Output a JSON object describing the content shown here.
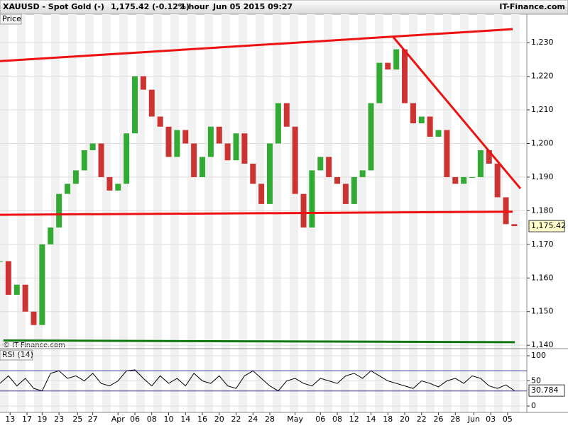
{
  "header": {
    "symbol": "XAUUSD - Spot Gold (-)",
    "quote": "1,175.42 (-0.12%)",
    "interval": "1 hour",
    "timestamp": "Jun 05 2015 09:27",
    "brand": "IT-Finance.com"
  },
  "chart_data": [
    {
      "type": "candlestick",
      "title": "Price",
      "watermark": "© IT-Finance.com",
      "x": [
        0,
        0.5,
        1,
        1.5,
        2,
        2.5,
        3,
        3.5,
        4,
        4.5,
        5,
        5.5,
        6,
        6.5,
        7,
        7.5,
        8,
        8.5,
        9,
        9.5,
        10,
        10.5,
        11,
        11.5,
        12,
        12.5,
        13,
        13.5,
        14,
        14.5,
        15,
        15.5,
        16,
        16.5,
        17,
        17.5,
        18,
        18.5,
        19,
        19.5,
        20,
        20.5,
        21,
        21.5,
        22,
        22.5,
        23,
        23.5,
        24,
        24.5,
        25,
        25.5,
        26,
        26.5,
        27,
        27.5,
        28,
        28.5,
        29,
        29.5,
        30,
        30.5
      ],
      "values": [
        1165,
        1155,
        1158,
        1150,
        1146,
        1170,
        1175,
        1185,
        1188,
        1192,
        1198,
        1200,
        1190,
        1186,
        1188,
        1203,
        1220,
        1216,
        1208,
        1205,
        1196,
        1204,
        1200,
        1190,
        1196,
        1205,
        1200,
        1195,
        1203,
        1194,
        1188,
        1182,
        1200,
        1212,
        1205,
        1185,
        1175,
        1192,
        1196,
        1190,
        1188,
        1182,
        1190,
        1192,
        1212,
        1224,
        1222,
        1228,
        1212,
        1206,
        1208,
        1202,
        1204,
        1190,
        1188,
        1190,
        1190,
        1198,
        1194,
        1184,
        1176,
        1175.42
      ],
      "up_color": "#33aa33",
      "down_color": "#cc3333",
      "last_price": {
        "value": 1175.42,
        "label": "1,175.42"
      },
      "xlim": [
        0,
        31.24
      ],
      "ylim": [
        1139.4,
        1235.3
      ],
      "yticks": [
        {
          "value": 1140,
          "label": "1,140"
        },
        {
          "value": 1150,
          "label": "1,150"
        },
        {
          "value": 1160,
          "label": "1,160"
        },
        {
          "value": 1170,
          "label": "1,170"
        },
        {
          "value": 1180,
          "label": "1,180"
        },
        {
          "value": 1190,
          "label": "1,190"
        },
        {
          "value": 1200,
          "label": "1,200"
        },
        {
          "value": 1210,
          "label": "1,210"
        },
        {
          "value": 1220,
          "label": "1,220"
        },
        {
          "value": 1230,
          "label": "1,230"
        }
      ],
      "trendlines": [
        {
          "x": [
            0,
            30.4
          ],
          "y": [
            1224.5,
            1234
          ],
          "color": "#ee1111"
        },
        {
          "x": [
            23.28,
            30.86
          ],
          "y": [
            1231.9,
            1186.6
          ],
          "color": "#ee1111"
        },
        {
          "x": [
            0,
            30.4
          ],
          "y": [
            1178.8,
            1179.7
          ],
          "color": "#ee1111"
        },
        {
          "x": [
            0.2,
            30.53
          ],
          "y": [
            1141.4,
            1140.9
          ],
          "color": "#117711"
        }
      ]
    },
    {
      "type": "line",
      "title": "RSI (14)",
      "x": [
        0,
        0.5,
        1,
        1.5,
        2,
        2.5,
        3,
        3.5,
        4,
        4.5,
        5,
        5.5,
        6,
        6.5,
        7,
        7.5,
        8,
        8.5,
        9,
        9.5,
        10,
        10.5,
        11,
        11.5,
        12,
        12.5,
        13,
        13.5,
        14,
        14.5,
        15,
        15.5,
        16,
        16.5,
        17,
        17.5,
        18,
        18.5,
        19,
        19.5,
        20,
        20.5,
        21,
        21.5,
        22,
        22.5,
        23,
        23.5,
        24,
        24.5,
        25,
        25.5,
        26,
        26.5,
        27,
        27.5,
        28,
        28.5,
        29,
        29.5,
        30,
        30.5
      ],
      "values": [
        45,
        60,
        40,
        55,
        35,
        30,
        65,
        70,
        55,
        60,
        50,
        65,
        45,
        40,
        50,
        70,
        72,
        55,
        40,
        60,
        45,
        55,
        40,
        65,
        50,
        45,
        60,
        40,
        35,
        60,
        70,
        55,
        40,
        30,
        50,
        55,
        45,
        40,
        55,
        50,
        45,
        60,
        65,
        55,
        70,
        60,
        50,
        45,
        40,
        35,
        50,
        45,
        38,
        50,
        55,
        45,
        60,
        55,
        40,
        35,
        42,
        30.784
      ],
      "color": "#000000",
      "levels": [
        30,
        70
      ],
      "level_color": "#333399",
      "xlim": [
        0,
        31.24
      ],
      "ylim": [
        -9.9,
        109.9
      ],
      "yticks": [
        0,
        50,
        100
      ],
      "xticks": [
        {
          "value": 0.6,
          "label": "13"
        },
        {
          "value": 1.6,
          "label": "17"
        },
        {
          "value": 2.5,
          "label": "19"
        },
        {
          "value": 3.5,
          "label": "23"
        },
        {
          "value": 4.6,
          "label": "25"
        },
        {
          "value": 5.5,
          "label": "27"
        },
        {
          "value": 7,
          "label": "Apr"
        },
        {
          "value": 8,
          "label": "06"
        },
        {
          "value": 9,
          "label": "08"
        },
        {
          "value": 10,
          "label": "10"
        },
        {
          "value": 11,
          "label": "14"
        },
        {
          "value": 12,
          "label": "16"
        },
        {
          "value": 13,
          "label": "20"
        },
        {
          "value": 14,
          "label": "22"
        },
        {
          "value": 15,
          "label": "24"
        },
        {
          "value": 16,
          "label": "28"
        },
        {
          "value": 17.5,
          "label": "May"
        },
        {
          "value": 19,
          "label": "06"
        },
        {
          "value": 20,
          "label": "08"
        },
        {
          "value": 21,
          "label": "12"
        },
        {
          "value": 22,
          "label": "14"
        },
        {
          "value": 23,
          "label": "18"
        },
        {
          "value": 24,
          "label": "20"
        },
        {
          "value": 25,
          "label": "22"
        },
        {
          "value": 26,
          "label": "26"
        },
        {
          "value": 27,
          "label": "28"
        },
        {
          "value": 28.1,
          "label": "Jun"
        },
        {
          "value": 29.1,
          "label": "03"
        },
        {
          "value": 30.1,
          "label": "05"
        }
      ]
    }
  ]
}
